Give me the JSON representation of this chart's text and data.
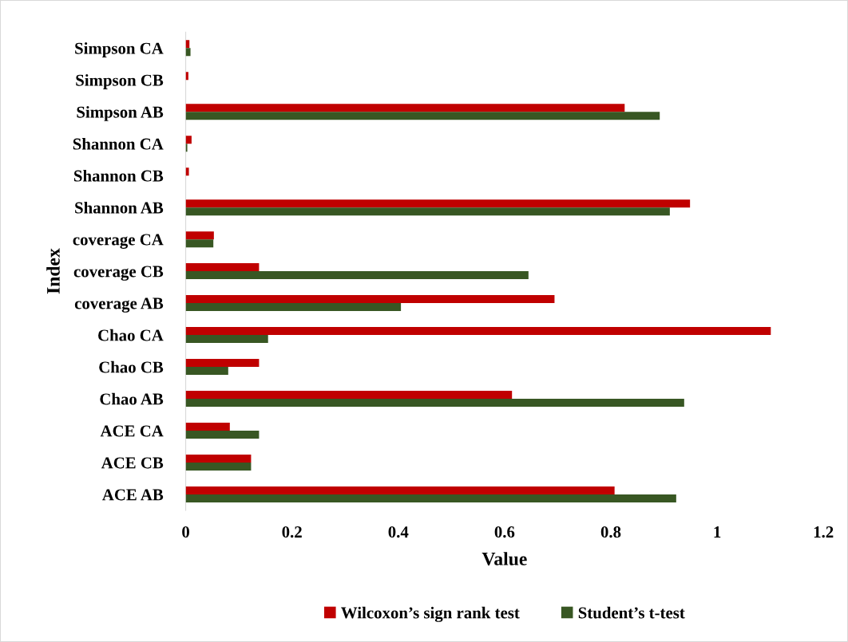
{
  "chart_data": {
    "type": "bar",
    "orientation": "horizontal",
    "xlabel": "Value",
    "ylabel": "Index",
    "categories": [
      "Simpson CA",
      "Simpson CB",
      "Simpson AB",
      "Shannon CA",
      "Shannon CB",
      "Shannon AB",
      "coverage CA",
      "coverage CB",
      "coverage AB",
      "Chao CA",
      "Chao CB",
      "Chao AB",
      "ACE CA",
      "ACE CB",
      "ACE AB"
    ],
    "series": [
      {
        "name": "Wilcoxon’s sign rank test",
        "color": "#c00000",
        "values": [
          0.007,
          0.005,
          0.826,
          0.011,
          0.006,
          0.949,
          0.053,
          0.138,
          0.694,
          1.101,
          0.138,
          0.614,
          0.083,
          0.123,
          0.807
        ]
      },
      {
        "name": "Student’s t-test",
        "color": "#385723",
        "values": [
          0.009,
          null,
          0.892,
          0.003,
          null,
          0.911,
          0.052,
          0.645,
          0.405,
          0.155,
          0.08,
          0.938,
          0.138,
          0.123,
          0.923
        ]
      }
    ],
    "xlim": [
      0,
      1.2
    ],
    "xticks": [
      0,
      {
        "value": 0.2,
        "label": "0.2"
      },
      {
        "value": 0.4,
        "label": "0.4"
      },
      {
        "value": 0.6,
        "label": "0.6"
      },
      {
        "value": 0.8,
        "label": "0.8"
      },
      1,
      {
        "value": 1.2,
        "label": "1.2"
      }
    ],
    "grid": false,
    "legend": "bottom"
  }
}
